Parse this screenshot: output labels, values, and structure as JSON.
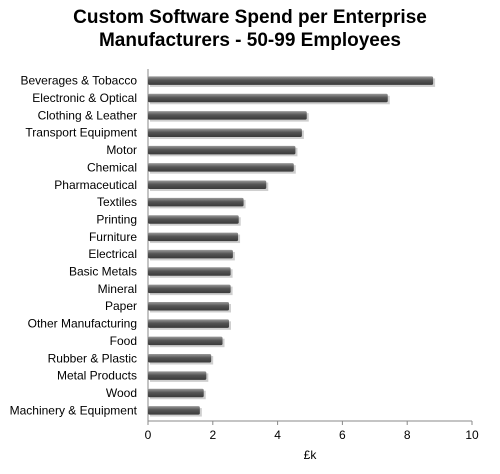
{
  "chart_data": {
    "type": "bar",
    "orientation": "horizontal",
    "title_lines": [
      "Custom Software Spend per Enterprise",
      "Manufacturers - 50-99 Employees"
    ],
    "categories": [
      "Beverages & Tobacco",
      "Electronic & Optical",
      "Clothing & Leather",
      "Transport Equipment",
      "Motor",
      "Chemical",
      "Pharmaceutical",
      "Textiles",
      "Printing",
      "Furniture",
      "Electrical",
      "Basic Metals",
      "Mineral",
      "Paper",
      "Other Manufacturing",
      "Food",
      "Rubber & Plastic",
      "Metal Products",
      "Wood",
      "Machinery & Equipment"
    ],
    "values": [
      8.8,
      7.4,
      4.9,
      4.75,
      4.55,
      4.5,
      3.65,
      2.95,
      2.8,
      2.78,
      2.62,
      2.55,
      2.55,
      2.5,
      2.5,
      2.3,
      1.95,
      1.8,
      1.72,
      1.6
    ],
    "xlabel": "£k",
    "ylabel": "",
    "xlim": [
      0,
      10
    ],
    "xticks": [
      0,
      2,
      4,
      6,
      8,
      10
    ],
    "grid": false,
    "legend": "none",
    "bar_color": "#555555",
    "bar_highlight": "#9a9a9a"
  }
}
